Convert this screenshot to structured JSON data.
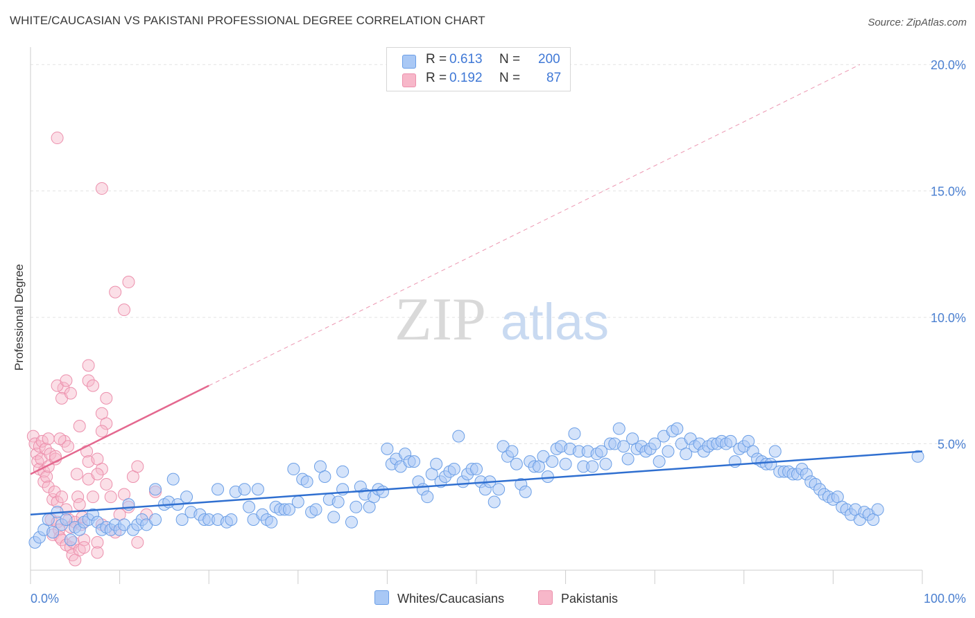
{
  "title": "WHITE/CAUCASIAN VS PAKISTANI PROFESSIONAL DEGREE CORRELATION CHART",
  "source": "Source: ZipAtlas.com",
  "watermark": {
    "zip": "ZIP",
    "atlas": "atlas"
  },
  "colors": {
    "blue_fill": "#a9c8f5",
    "blue_stroke": "#6a9ee6",
    "blue_line": "#2f6fd0",
    "pink_fill": "#f7b7c9",
    "pink_stroke": "#ec8fac",
    "pink_line": "#e4688f",
    "accent_text": "#3f78d6",
    "grid": "#e3e3e3"
  },
  "legend": {
    "rows": [
      {
        "r_label": "R =",
        "r_value": "0.613",
        "n_label": "N =",
        "n_value": "200"
      },
      {
        "r_label": "R =",
        "r_value": "0.192",
        "n_label": "N =",
        "n_value": "87"
      }
    ]
  },
  "bottom_legend": {
    "series1": "Whites/Caucasians",
    "series2": "Pakistanis"
  },
  "chart_data": {
    "type": "scatter",
    "title": "WHITE/CAUCASIAN VS PAKISTANI PROFESSIONAL DEGREE CORRELATION CHART",
    "xlabel": "",
    "ylabel": "Professional Degree",
    "xlim": [
      0,
      100
    ],
    "ylim": [
      0,
      20.5
    ],
    "x_tick_labels": [
      "0.0%",
      "100.0%"
    ],
    "y_ticks": [
      5,
      10,
      15,
      20
    ],
    "y_tick_labels": [
      "5.0%",
      "10.0%",
      "15.0%",
      "20.0%"
    ],
    "grid": true,
    "legend_position": "top-center",
    "series": [
      {
        "name": "Whites/Caucasians",
        "R": 0.613,
        "N": 200,
        "trend": {
          "x0": 0,
          "y0": 2.2,
          "x1": 100,
          "y1": 4.7
        },
        "points": [
          [
            0.5,
            1.1
          ],
          [
            1,
            1.3
          ],
          [
            1.5,
            1.6
          ],
          [
            2,
            2.0
          ],
          [
            2.5,
            1.5
          ],
          [
            3,
            2.3
          ],
          [
            3.5,
            1.8
          ],
          [
            4,
            2.0
          ],
          [
            4.5,
            1.2
          ],
          [
            5,
            1.7
          ],
          [
            5.5,
            1.6
          ],
          [
            6,
            1.9
          ],
          [
            6.5,
            2.0
          ],
          [
            7,
            2.2
          ],
          [
            7.5,
            1.9
          ],
          [
            8,
            1.6
          ],
          [
            8.5,
            1.7
          ],
          [
            9,
            1.6
          ],
          [
            9.5,
            1.8
          ],
          [
            10,
            1.6
          ],
          [
            10.5,
            1.8
          ],
          [
            11,
            2.6
          ],
          [
            11.5,
            1.6
          ],
          [
            12,
            1.8
          ],
          [
            12.5,
            2.0
          ],
          [
            13,
            1.8
          ],
          [
            14,
            3.2
          ],
          [
            14,
            2.0
          ],
          [
            15,
            2.6
          ],
          [
            15.5,
            2.7
          ],
          [
            16,
            3.6
          ],
          [
            16.5,
            2.6
          ],
          [
            17,
            2.0
          ],
          [
            17.5,
            2.9
          ],
          [
            18,
            2.3
          ],
          [
            19,
            2.2
          ],
          [
            19.5,
            2.0
          ],
          [
            20,
            2.0
          ],
          [
            21,
            3.2
          ],
          [
            21,
            2.0
          ],
          [
            22,
            1.9
          ],
          [
            22.5,
            2.0
          ],
          [
            23,
            3.1
          ],
          [
            24,
            3.2
          ],
          [
            24.5,
            2.5
          ],
          [
            25,
            2.0
          ],
          [
            25.5,
            3.2
          ],
          [
            26,
            2.2
          ],
          [
            26.5,
            2.0
          ],
          [
            27,
            1.9
          ],
          [
            27.5,
            2.5
          ],
          [
            28,
            2.4
          ],
          [
            28.5,
            2.4
          ],
          [
            29,
            2.4
          ],
          [
            29.5,
            4.0
          ],
          [
            30,
            2.7
          ],
          [
            30.5,
            3.6
          ],
          [
            31,
            3.5
          ],
          [
            31.5,
            2.3
          ],
          [
            32,
            2.4
          ],
          [
            32.5,
            4.1
          ],
          [
            33,
            3.7
          ],
          [
            33.5,
            2.8
          ],
          [
            34,
            2.1
          ],
          [
            34.5,
            2.7
          ],
          [
            35,
            3.9
          ],
          [
            35,
            3.2
          ],
          [
            36,
            1.9
          ],
          [
            36.5,
            2.5
          ],
          [
            37,
            3.3
          ],
          [
            37.5,
            3.0
          ],
          [
            38,
            2.5
          ],
          [
            38.5,
            2.9
          ],
          [
            39,
            3.2
          ],
          [
            39.5,
            3.1
          ],
          [
            40,
            4.8
          ],
          [
            40.5,
            4.2
          ],
          [
            41,
            4.4
          ],
          [
            41.5,
            4.1
          ],
          [
            42,
            4.6
          ],
          [
            42.5,
            4.3
          ],
          [
            43,
            4.3
          ],
          [
            43.5,
            3.5
          ],
          [
            44,
            3.2
          ],
          [
            44.5,
            2.9
          ],
          [
            45,
            3.8
          ],
          [
            45.5,
            4.2
          ],
          [
            46,
            3.5
          ],
          [
            46.5,
            3.7
          ],
          [
            47,
            3.9
          ],
          [
            47.5,
            4.0
          ],
          [
            48,
            5.3
          ],
          [
            48.5,
            3.5
          ],
          [
            49,
            3.8
          ],
          [
            49.5,
            4.0
          ],
          [
            50,
            4.0
          ],
          [
            50.5,
            3.5
          ],
          [
            51,
            3.2
          ],
          [
            51.5,
            3.5
          ],
          [
            52,
            2.7
          ],
          [
            52.5,
            3.2
          ],
          [
            53,
            4.9
          ],
          [
            53.5,
            4.5
          ],
          [
            54,
            4.7
          ],
          [
            54.5,
            4.2
          ],
          [
            55,
            3.4
          ],
          [
            55.5,
            3.1
          ],
          [
            56,
            4.3
          ],
          [
            56.5,
            4.1
          ],
          [
            57,
            4.1
          ],
          [
            57.5,
            4.5
          ],
          [
            58,
            3.7
          ],
          [
            58.5,
            4.3
          ],
          [
            59,
            4.8
          ],
          [
            59.5,
            4.9
          ],
          [
            60,
            4.2
          ],
          [
            60.5,
            4.8
          ],
          [
            61,
            5.4
          ],
          [
            61.5,
            4.7
          ],
          [
            62,
            4.1
          ],
          [
            62.5,
            4.7
          ],
          [
            63,
            4.1
          ],
          [
            63.5,
            4.6
          ],
          [
            64,
            4.7
          ],
          [
            64.5,
            4.2
          ],
          [
            65,
            5.0
          ],
          [
            65.5,
            5.0
          ],
          [
            66,
            5.6
          ],
          [
            66.5,
            4.9
          ],
          [
            67,
            4.4
          ],
          [
            67.5,
            5.2
          ],
          [
            68,
            4.8
          ],
          [
            68.5,
            4.9
          ],
          [
            69,
            4.7
          ],
          [
            69.5,
            4.8
          ],
          [
            70,
            5.0
          ],
          [
            70.5,
            4.3
          ],
          [
            71,
            5.3
          ],
          [
            71.5,
            4.7
          ],
          [
            72,
            5.5
          ],
          [
            72.5,
            5.6
          ],
          [
            73,
            5.0
          ],
          [
            73.5,
            4.6
          ],
          [
            74,
            5.2
          ],
          [
            74.5,
            4.9
          ],
          [
            75,
            5.0
          ],
          [
            75.5,
            4.7
          ],
          [
            76,
            4.9
          ],
          [
            76.5,
            5.0
          ],
          [
            77,
            5.0
          ],
          [
            77.5,
            5.1
          ],
          [
            78,
            5.0
          ],
          [
            78.5,
            5.1
          ],
          [
            79,
            4.3
          ],
          [
            79.5,
            4.8
          ],
          [
            80,
            4.9
          ],
          [
            80.5,
            5.1
          ],
          [
            81,
            4.7
          ],
          [
            81.5,
            4.4
          ],
          [
            82,
            4.3
          ],
          [
            82.5,
            4.2
          ],
          [
            83,
            4.2
          ],
          [
            83.5,
            4.7
          ],
          [
            84,
            3.9
          ],
          [
            84.5,
            3.9
          ],
          [
            85,
            3.9
          ],
          [
            85.5,
            3.8
          ],
          [
            86,
            3.8
          ],
          [
            86.5,
            4.0
          ],
          [
            87,
            3.8
          ],
          [
            87.5,
            3.5
          ],
          [
            88,
            3.4
          ],
          [
            88.5,
            3.2
          ],
          [
            89,
            3.0
          ],
          [
            89.5,
            2.9
          ],
          [
            90,
            2.8
          ],
          [
            90.5,
            2.9
          ],
          [
            91,
            2.5
          ],
          [
            91.5,
            2.4
          ],
          [
            92,
            2.2
          ],
          [
            92.5,
            2.4
          ],
          [
            93,
            2.0
          ],
          [
            93.5,
            2.3
          ],
          [
            94,
            2.2
          ],
          [
            94.5,
            2.0
          ],
          [
            95,
            2.4
          ],
          [
            99.5,
            4.5
          ]
        ]
      },
      {
        "name": "Pakistanis",
        "R": 0.192,
        "N": 87,
        "trend": {
          "x0": 0,
          "y0": 3.8,
          "x1": 20,
          "y1": 7.3,
          "dashed_to_x": 93,
          "dashed_to_y": 20.0
        },
        "points": [
          [
            0.3,
            5.3
          ],
          [
            0.5,
            5.0
          ],
          [
            0.7,
            4.6
          ],
          [
            0.8,
            4.3
          ],
          [
            1.0,
            4.9
          ],
          [
            1.0,
            4.0
          ],
          [
            1.2,
            4.4
          ],
          [
            1.3,
            5.1
          ],
          [
            1.5,
            3.9
          ],
          [
            1.5,
            3.5
          ],
          [
            1.7,
            4.8
          ],
          [
            1.8,
            3.7
          ],
          [
            2.0,
            5.2
          ],
          [
            2.0,
            4.1
          ],
          [
            2.0,
            3.3
          ],
          [
            2.2,
            4.6
          ],
          [
            2.3,
            2.0
          ],
          [
            2.5,
            2.8
          ],
          [
            2.5,
            1.4
          ],
          [
            2.7,
            3.1
          ],
          [
            2.8,
            4.4
          ],
          [
            3.0,
            2.7
          ],
          [
            3.0,
            1.9
          ],
          [
            3.2,
            1.6
          ],
          [
            3.3,
            1.3
          ],
          [
            3.5,
            2.9
          ],
          [
            3.5,
            1.2
          ],
          [
            3.7,
            7.2
          ],
          [
            3.8,
            5.1
          ],
          [
            4.0,
            2.4
          ],
          [
            4.0,
            1.0
          ],
          [
            4.2,
            4.9
          ],
          [
            4.3,
            2.0
          ],
          [
            4.5,
            1.7
          ],
          [
            4.5,
            0.9
          ],
          [
            4.7,
            0.6
          ],
          [
            4.8,
            1.1
          ],
          [
            5.0,
            1.9
          ],
          [
            5.0,
            0.4
          ],
          [
            5.2,
            3.8
          ],
          [
            5.3,
            2.9
          ],
          [
            5.5,
            2.6
          ],
          [
            5.5,
            0.8
          ],
          [
            5.7,
            1.8
          ],
          [
            5.8,
            2.1
          ],
          [
            6.0,
            1.2
          ],
          [
            6.0,
            0.9
          ],
          [
            6.3,
            4.7
          ],
          [
            6.5,
            4.3
          ],
          [
            6.5,
            3.6
          ],
          [
            7.0,
            2.9
          ],
          [
            7.5,
            1.1
          ],
          [
            7.5,
            0.7
          ],
          [
            8.0,
            4.0
          ],
          [
            8.0,
            1.8
          ],
          [
            8.5,
            3.4
          ],
          [
            9.0,
            2.9
          ],
          [
            9.5,
            1.5
          ],
          [
            10.0,
            2.2
          ],
          [
            10.5,
            3.0
          ],
          [
            11.0,
            2.5
          ],
          [
            11.5,
            3.7
          ],
          [
            12.0,
            4.1
          ],
          [
            12.0,
            1.1
          ],
          [
            13.0,
            2.2
          ],
          [
            14.0,
            3.1
          ],
          [
            2.8,
            4.5
          ],
          [
            3.3,
            5.2
          ],
          [
            3.0,
            7.3
          ],
          [
            3.5,
            6.8
          ],
          [
            4.0,
            7.5
          ],
          [
            4.5,
            7.0
          ],
          [
            3.0,
            17.1
          ],
          [
            8.0,
            15.1
          ],
          [
            9.5,
            11.0
          ],
          [
            11.0,
            11.4
          ],
          [
            10.5,
            10.3
          ],
          [
            6.5,
            8.1
          ],
          [
            6.5,
            7.5
          ],
          [
            7.0,
            7.3
          ],
          [
            8.5,
            6.8
          ],
          [
            8.0,
            6.2
          ],
          [
            8.5,
            5.8
          ],
          [
            8.0,
            5.5
          ],
          [
            7.5,
            4.4
          ],
          [
            7.5,
            3.8
          ],
          [
            5.5,
            5.7
          ]
        ]
      }
    ]
  }
}
